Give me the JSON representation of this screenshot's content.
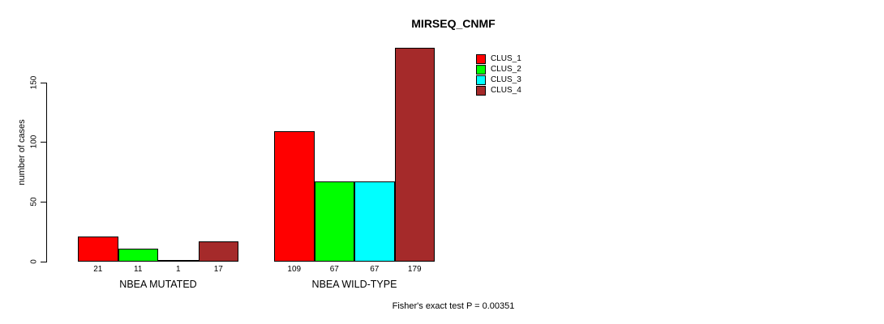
{
  "title": "MIRSEQ_CNMF",
  "ylabel": "number of cases",
  "footer": "Fisher's exact test P = 0.00351",
  "chart_data": {
    "type": "bar",
    "grouped": true,
    "title": "MIRSEQ_CNMF",
    "xlabel": "",
    "ylabel": "number of cases",
    "categories": [
      "NBEA MUTATED",
      "NBEA WILD-TYPE"
    ],
    "series": [
      {
        "name": "CLUS_1",
        "color": "#FF0000",
        "values": [
          21,
          109
        ]
      },
      {
        "name": "CLUS_2",
        "color": "#00FF00",
        "values": [
          11,
          67
        ]
      },
      {
        "name": "CLUS_3",
        "color": "#00FFFF",
        "values": [
          1,
          67
        ]
      },
      {
        "name": "CLUS_4",
        "color": "#A52A2A",
        "values": [
          17,
          179
        ]
      }
    ],
    "yticks": [
      0,
      50,
      100,
      150
    ],
    "ylim": [
      0,
      185
    ],
    "bar_border_color": "#000000",
    "bar_value_labels_shown": true,
    "grid": false,
    "legend_position": "top-right",
    "annotation": "Fisher's exact test P = 0.00351"
  }
}
